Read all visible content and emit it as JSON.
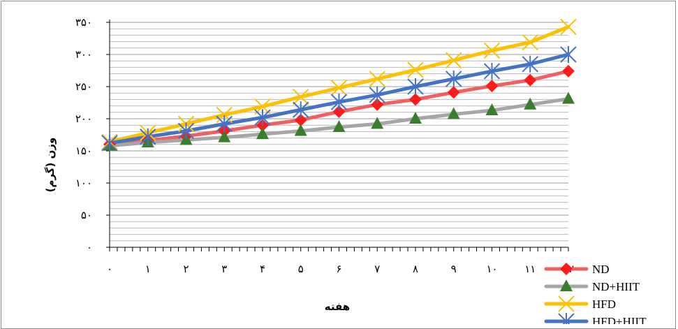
{
  "chart_data": {
    "type": "line",
    "xlabel": "هفته",
    "ylabel": "وزن (گرم)",
    "x": [
      0,
      1,
      2,
      3,
      4,
      5,
      6,
      7,
      8,
      9,
      10,
      11,
      12
    ],
    "x_tick_labels": [
      "۰",
      "۱",
      "۲",
      "۳",
      "۴",
      "۵",
      "۶",
      "۷",
      "۸",
      "۹",
      "۱۰",
      "۱۱",
      "۱۲"
    ],
    "ylim": [
      0,
      350
    ],
    "y_ticks": [
      0,
      50,
      100,
      150,
      200,
      250,
      300,
      350
    ],
    "y_tick_labels": [
      "۰",
      "۵۰",
      "۱۰۰",
      "۱۵۰",
      "۲۰۰",
      "۲۵۰",
      "۳۰۰",
      "۳۵۰"
    ],
    "grid": true,
    "legend_position": "bottom-right",
    "series": [
      {
        "name": "ND",
        "color": "#f06060",
        "marker": "diamond",
        "marker_color": "#ff1a1a",
        "values": [
          160,
          166,
          173,
          181,
          190,
          198,
          211,
          222,
          230,
          241,
          251,
          260,
          274
        ]
      },
      {
        "name": "ND+HIIT",
        "color": "#a6a6a6",
        "marker": "triangle",
        "marker_color": "#3a7d2c",
        "values": [
          158,
          163,
          167,
          171,
          176,
          181,
          187,
          192,
          200,
          207,
          213,
          222,
          231
        ]
      },
      {
        "name": "HFD",
        "color": "#ffc000",
        "marker": "x",
        "marker_color": "#ffc000",
        "values": [
          164,
          178,
          192,
          206,
          219,
          234,
          248,
          262,
          276,
          291,
          306,
          319,
          343
        ]
      },
      {
        "name": "HFD+HIIT",
        "color": "#4472c4",
        "marker": "star",
        "marker_color": "#4472c4",
        "values": [
          162,
          172,
          181,
          192,
          202,
          214,
          226,
          237,
          250,
          262,
          274,
          285,
          300
        ]
      }
    ]
  }
}
